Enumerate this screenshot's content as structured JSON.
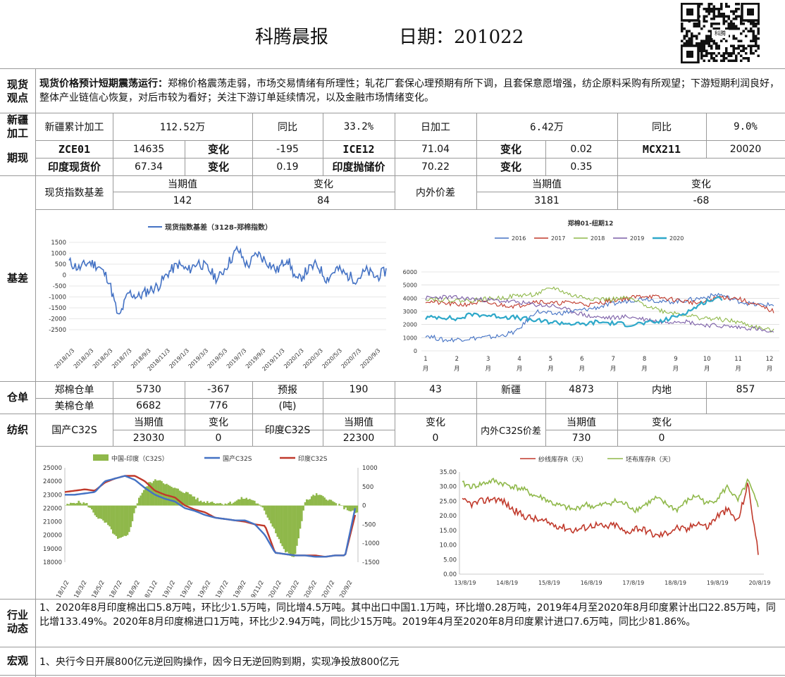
{
  "header": {
    "title": "科腾晨报",
    "date_label": "日期：201022",
    "qr_caption": "科腾"
  },
  "spot": {
    "label": "现货观点",
    "heading": "现货价格预计短期震荡运行：",
    "body": "郑棉价格震荡走弱，市场交易情绪有所理性；轧花厂套保心理预期有所下调，且套保意愿增强，纺企原料采购有所观望；下游短期利润良好，整体产业链信心恢复，对后市较为看好；关注下游订单延续情况，以及金融市场情绪变化。"
  },
  "xinjiang": {
    "label": "新疆加工",
    "cells": [
      "新疆累计加工",
      "112.52万",
      "同比",
      "33.2%",
      "日加工",
      "6.42万",
      "同比",
      "9.0%"
    ]
  },
  "futures": {
    "label": "期现",
    "row1": [
      "ZCE01",
      "14635",
      "变化",
      "-195",
      "ICE12",
      "71.04",
      "变化",
      "0.02",
      "MCX211",
      "20020"
    ],
    "row2": [
      "印度现货价",
      "67.34",
      "变化",
      "0.19",
      "印度抛储价",
      "70.22",
      "变化",
      "0.35"
    ]
  },
  "basis": {
    "label": "基差",
    "cells": [
      "现货指数基差",
      "当期值",
      "变化",
      "142",
      "84",
      "内外价差",
      "当期值",
      "变化",
      "3181",
      "-68"
    ],
    "chart1": {
      "legend": "现货指数基差（3128-郑棉指数）",
      "yticks": [
        "1500",
        "1000",
        "500",
        "0",
        "-500",
        "-1000",
        "-1500",
        "-2000",
        "-2500"
      ],
      "xticks": [
        "2018/1/3",
        "2018/3/3",
        "2018/5/3",
        "2018/7/3",
        "2018/9/3",
        "2018/11/3",
        "2019/1/3",
        "2019/3/3",
        "2019/5/3",
        "2019/7/3",
        "2019/9/3",
        "2019/11/3",
        "2020/1/3",
        "2020/3/3",
        "2020/5/3",
        "2020/7/3",
        "2020/9/3"
      ]
    },
    "chart2": {
      "title": "郑棉01-纽期12",
      "series": [
        "2016",
        "2017",
        "2018",
        "2019",
        "2020"
      ],
      "yticks": [
        "6000",
        "5000",
        "4000",
        "3000",
        "2000",
        "1000",
        "0"
      ],
      "xticks": [
        "1",
        "2",
        "3",
        "4",
        "5",
        "6",
        "7",
        "8",
        "9",
        "10",
        "11",
        "12"
      ],
      "xunit": "月"
    }
  },
  "warehouse": {
    "label": "仓单",
    "row1": [
      "郑棉仓单",
      "5730",
      "-367",
      "预报",
      "190",
      "43",
      "新疆",
      "4873",
      "内地",
      "857"
    ],
    "row2": [
      "美棉仓单",
      "6682",
      "776",
      "(吨)"
    ]
  },
  "textile": {
    "label": "纺织",
    "cells": [
      "国产C32S",
      "当期值",
      "变化",
      "23030",
      "0",
      "印度C32S",
      "当期值",
      "变化",
      "22300",
      "0",
      "内外C32S价差",
      "当期值",
      "变化",
      "730",
      "0"
    ],
    "chart3": {
      "legend": [
        "中国-印度（C32S）",
        "国产C32S",
        "印度C32S"
      ],
      "yticks": [
        "25000",
        "24000",
        "23000",
        "22000",
        "21000",
        "20000",
        "19000",
        "18000"
      ],
      "y2ticks": [
        "1000",
        "500",
        "0",
        "-500",
        "-1000",
        "-1500"
      ],
      "xticks": [
        "18/1/2",
        "18/3/2",
        "18/5/2",
        "18/7/2",
        "18/9/2",
        "18/11/2",
        "19/1/2",
        "19/3/2",
        "19/5/2",
        "19/7/2",
        "19/9/2",
        "19/11/2",
        "20/1/2",
        "20/3/2",
        "20/5/2",
        "20/7/2",
        "20/9/2"
      ]
    },
    "chart4": {
      "legend": [
        "纱线库存R（天）",
        "坯布库存R（天）"
      ],
      "yticks": [
        "35.00",
        "30.00",
        "25.00",
        "20.00",
        "15.00",
        "10.00",
        "5.00",
        "0.00"
      ],
      "xticks": [
        "13/8/19",
        "14/8/19",
        "15/8/19",
        "16/8/19",
        "17/8/19",
        "18/8/19",
        "19/8/19",
        "20/8/19"
      ]
    }
  },
  "industry": {
    "label": "行业动态",
    "body": "1、2020年8月印度棉出口5.8万吨，环比少1.5万吨，同比增4.5万吨。其中出口中国1.1万吨，环比增0.28万吨，2019年4月至2020年8月印度累计出口22.85万吨，同比增133.49%。2020年8月印度棉进口1万吨，环比少2.94万吨，同比少15万吨。2019年4月至2020年8月印度累计进口7.6万吨，同比少81.86%。"
  },
  "macro": {
    "label": "宏观",
    "body": "1、央行今日开展800亿元逆回购操作，因今日无逆回购到期，实现净投放800亿元"
  },
  "colors": {
    "blue": "#4472c4",
    "red": "#c0392b",
    "green": "#8fb84a",
    "purple": "#7b5ea7",
    "cyan": "#2ea8c9",
    "grid": "#d0d0d0"
  }
}
